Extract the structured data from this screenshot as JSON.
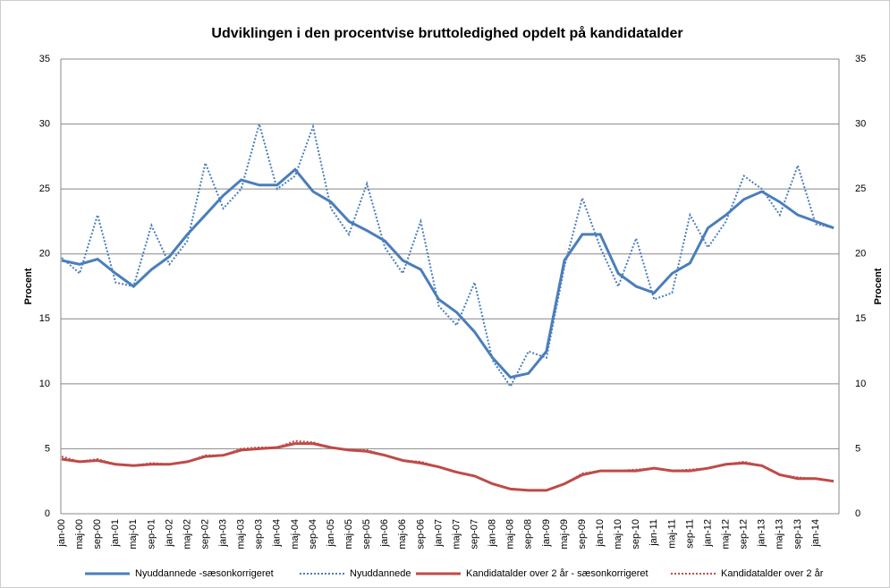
{
  "chart_data": {
    "type": "line",
    "title": "Udviklingen i den procentvise bruttoledighed  opdelt på kandidatalder",
    "y_label": "Procent",
    "y2_label": "Procent",
    "categories": [
      "jan-00",
      "maj-00",
      "sep-00",
      "jan-01",
      "maj-01",
      "sep-01",
      "jan-02",
      "maj-02",
      "sep-02",
      "jan-03",
      "maj-03",
      "sep-03",
      "jan-04",
      "maj-04",
      "sep-04",
      "jan-05",
      "maj-05",
      "sep-05",
      "jan-06",
      "maj-06",
      "sep-06",
      "jan-07",
      "maj-07",
      "sep-07",
      "jan-08",
      "maj-08",
      "sep-08",
      "jan-09",
      "maj-09",
      "sep-09",
      "jan-10",
      "maj-10",
      "sep-10",
      "jan-11",
      "maj-11",
      "sep-11",
      "jan-12",
      "maj-12",
      "sep-12",
      "jan-13",
      "maj-13",
      "sep-13",
      "jan-14",
      null
    ],
    "series": [
      {
        "name": "Nyuddannede -sæsonkorrigeret",
        "color": "#4a7ebb",
        "dash": false,
        "values": [
          19.5,
          19.2,
          19.6,
          18.5,
          17.5,
          18.8,
          19.8,
          21.5,
          23.0,
          24.5,
          25.7,
          25.3,
          25.3,
          26.5,
          24.8,
          24.0,
          22.5,
          21.8,
          21.0,
          19.5,
          18.8,
          16.5,
          15.5,
          14.0,
          12.0,
          10.5,
          10.8,
          12.5,
          19.5,
          21.5,
          21.5,
          18.5,
          17.5,
          17.0,
          18.5,
          19.3,
          22.0,
          23.0,
          24.2,
          24.8,
          24.0,
          23.0,
          22.5,
          22.0
        ]
      },
      {
        "name": "Nyuddannede",
        "color": "#4a7ebb",
        "dash": true,
        "values": [
          19.7,
          18.5,
          23.0,
          17.8,
          17.5,
          22.2,
          19.2,
          21.0,
          27.0,
          23.5,
          25.0,
          30.0,
          25.0,
          26.0,
          29.8,
          23.5,
          21.5,
          25.4,
          20.5,
          18.5,
          22.5,
          16.0,
          14.5,
          17.8,
          11.8,
          9.8,
          12.5,
          12.0,
          19.0,
          24.3,
          20.5,
          17.5,
          21.2,
          16.5,
          17.0,
          23.0,
          20.5,
          22.5,
          26.0,
          25.0,
          23.0,
          26.8,
          22.3,
          22.0
        ]
      },
      {
        "name": "Kandidatalder over 2 år - sæsonkorrigeret",
        "color": "#be4b48",
        "dash": false,
        "values": [
          4.2,
          4.0,
          4.1,
          3.8,
          3.7,
          3.8,
          3.8,
          4.0,
          4.4,
          4.5,
          4.9,
          5.0,
          5.1,
          5.4,
          5.4,
          5.1,
          4.9,
          4.8,
          4.5,
          4.1,
          3.9,
          3.6,
          3.2,
          2.9,
          2.3,
          1.9,
          1.8,
          1.8,
          2.3,
          3.0,
          3.3,
          3.3,
          3.3,
          3.5,
          3.3,
          3.3,
          3.5,
          3.8,
          3.9,
          3.7,
          3.0,
          2.7,
          2.7,
          2.5
        ]
      },
      {
        "name": "Kandidatalder over 2 år",
        "color": "#be4b48",
        "dash": true,
        "values": [
          4.4,
          4.0,
          4.2,
          3.8,
          3.7,
          3.9,
          3.8,
          4.0,
          4.5,
          4.5,
          5.0,
          5.1,
          5.1,
          5.6,
          5.5,
          5.1,
          4.9,
          4.9,
          4.5,
          4.1,
          4.0,
          3.6,
          3.2,
          2.9,
          2.3,
          1.9,
          1.8,
          1.8,
          2.3,
          3.1,
          3.3,
          3.3,
          3.4,
          3.5,
          3.3,
          3.4,
          3.5,
          3.8,
          4.0,
          3.7,
          3.0,
          2.8,
          2.7,
          2.5
        ]
      }
    ],
    "ylim": [
      0,
      35
    ],
    "yticks": [
      0,
      5,
      10,
      15,
      20,
      25,
      30,
      35
    ],
    "y2lim": [
      0,
      35
    ],
    "y2ticks": [
      0,
      5,
      10,
      15,
      20,
      25,
      30,
      35
    ],
    "grid": true,
    "legend": "bottom"
  }
}
